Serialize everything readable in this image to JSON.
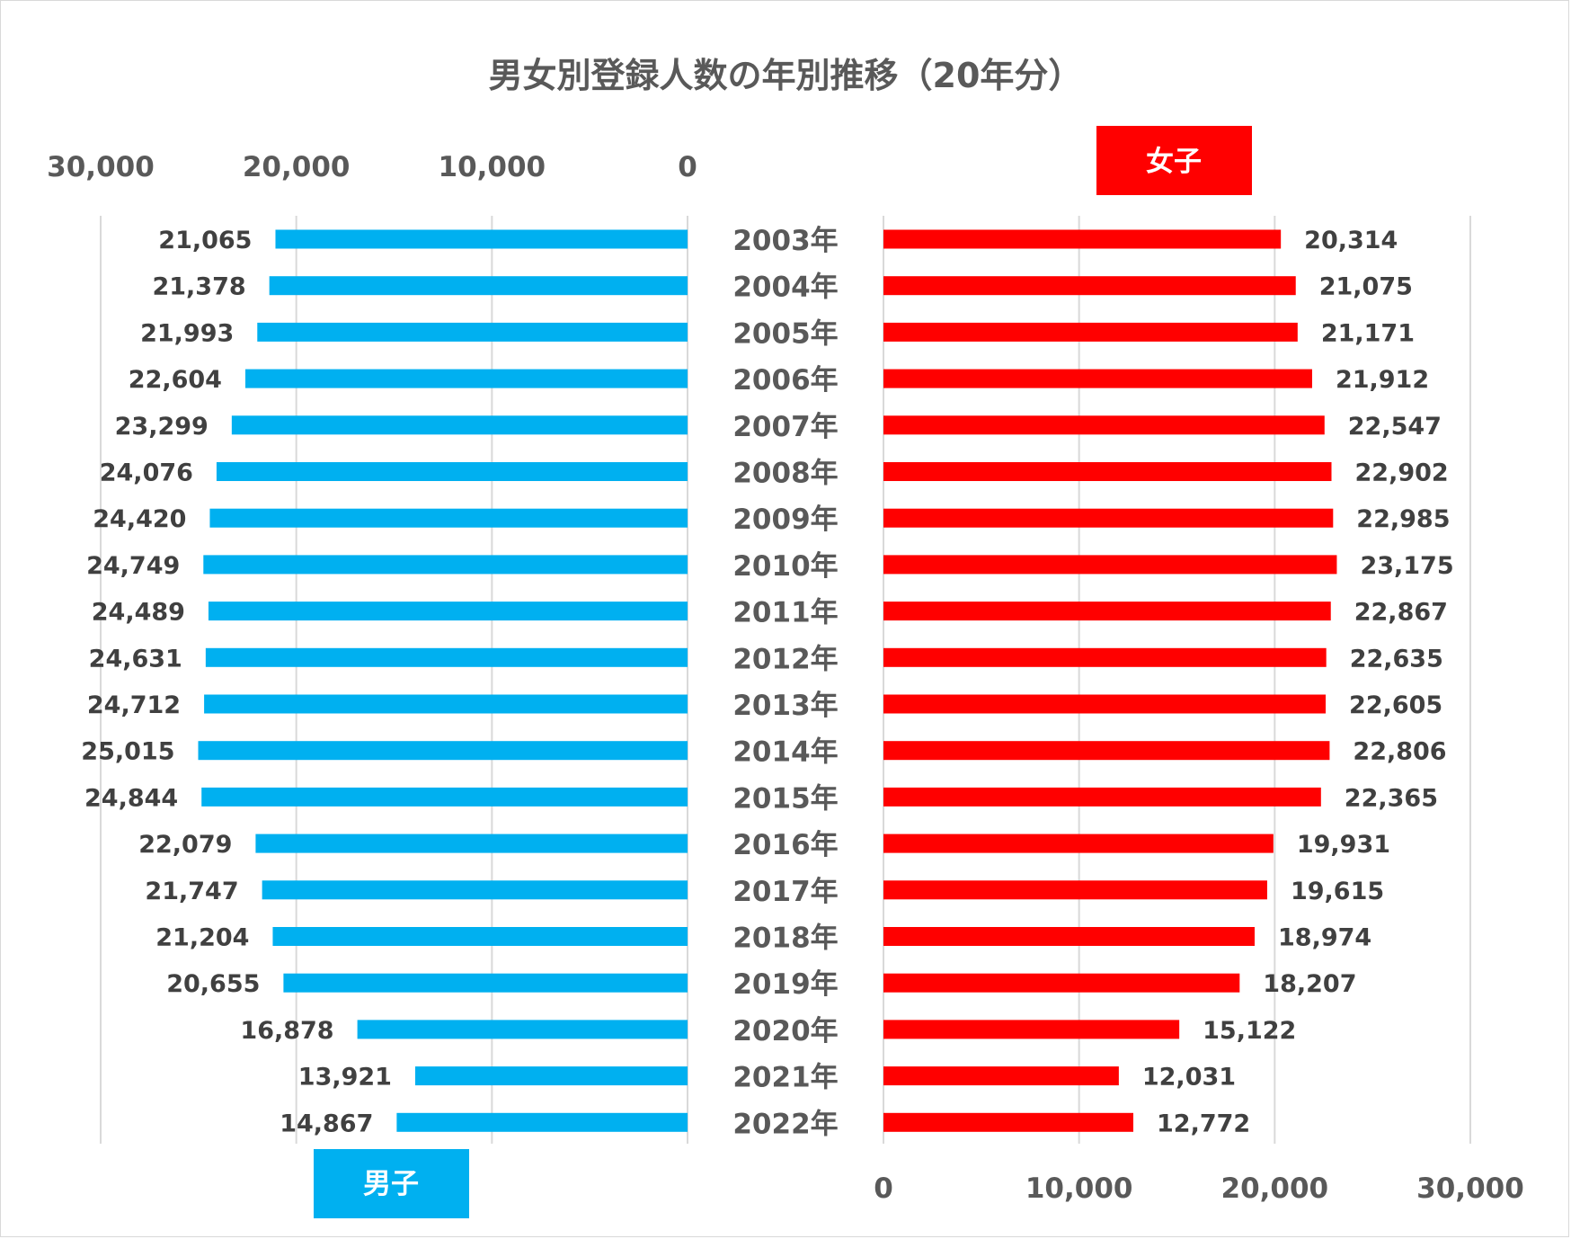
{
  "chart_data": {
    "type": "bar",
    "title": "男女別登録人数の年別推移（20年分）",
    "categories": [
      "2003年",
      "2004年",
      "2005年",
      "2006年",
      "2007年",
      "2008年",
      "2009年",
      "2010年",
      "2011年",
      "2012年",
      "2013年",
      "2014年",
      "2015年",
      "2016年",
      "2017年",
      "2018年",
      "2019年",
      "2020年",
      "2021年",
      "2022年"
    ],
    "series": [
      {
        "name": "男子",
        "color": "#00b0f0",
        "values": [
          21065,
          21378,
          21993,
          22604,
          23299,
          24076,
          24420,
          24749,
          24489,
          24631,
          24712,
          25015,
          24844,
          22079,
          21747,
          21204,
          20655,
          16878,
          13921,
          14867
        ],
        "labels": [
          "21,065",
          "21,378",
          "21,993",
          "22,604",
          "23,299",
          "24,076",
          "24,420",
          "24,749",
          "24,489",
          "24,631",
          "24,712",
          "25,015",
          "24,844",
          "22,079",
          "21,747",
          "21,204",
          "20,655",
          "16,878",
          "13,921",
          "14,867"
        ]
      },
      {
        "name": "女子",
        "color": "#ff0000",
        "values": [
          20314,
          21075,
          21171,
          21912,
          22547,
          22902,
          22985,
          23175,
          22867,
          22635,
          22605,
          22806,
          22365,
          19931,
          19615,
          18974,
          18207,
          15122,
          12031,
          12772
        ],
        "labels": [
          "20,314",
          "21,075",
          "21,171",
          "21,912",
          "22,547",
          "22,902",
          "22,985",
          "23,175",
          "22,867",
          "22,635",
          "22,605",
          "22,806",
          "22,365",
          "19,931",
          "19,615",
          "18,974",
          "18,207",
          "15,122",
          "12,031",
          "12,772"
        ]
      }
    ],
    "xlim": [
      0,
      30000
    ],
    "tick_values": [
      0,
      10000,
      20000,
      30000
    ],
    "tick_labels": [
      "0",
      "10,000",
      "20,000",
      "30,000"
    ],
    "grid": true,
    "legend": "male label bottom-left, female label top-right"
  }
}
